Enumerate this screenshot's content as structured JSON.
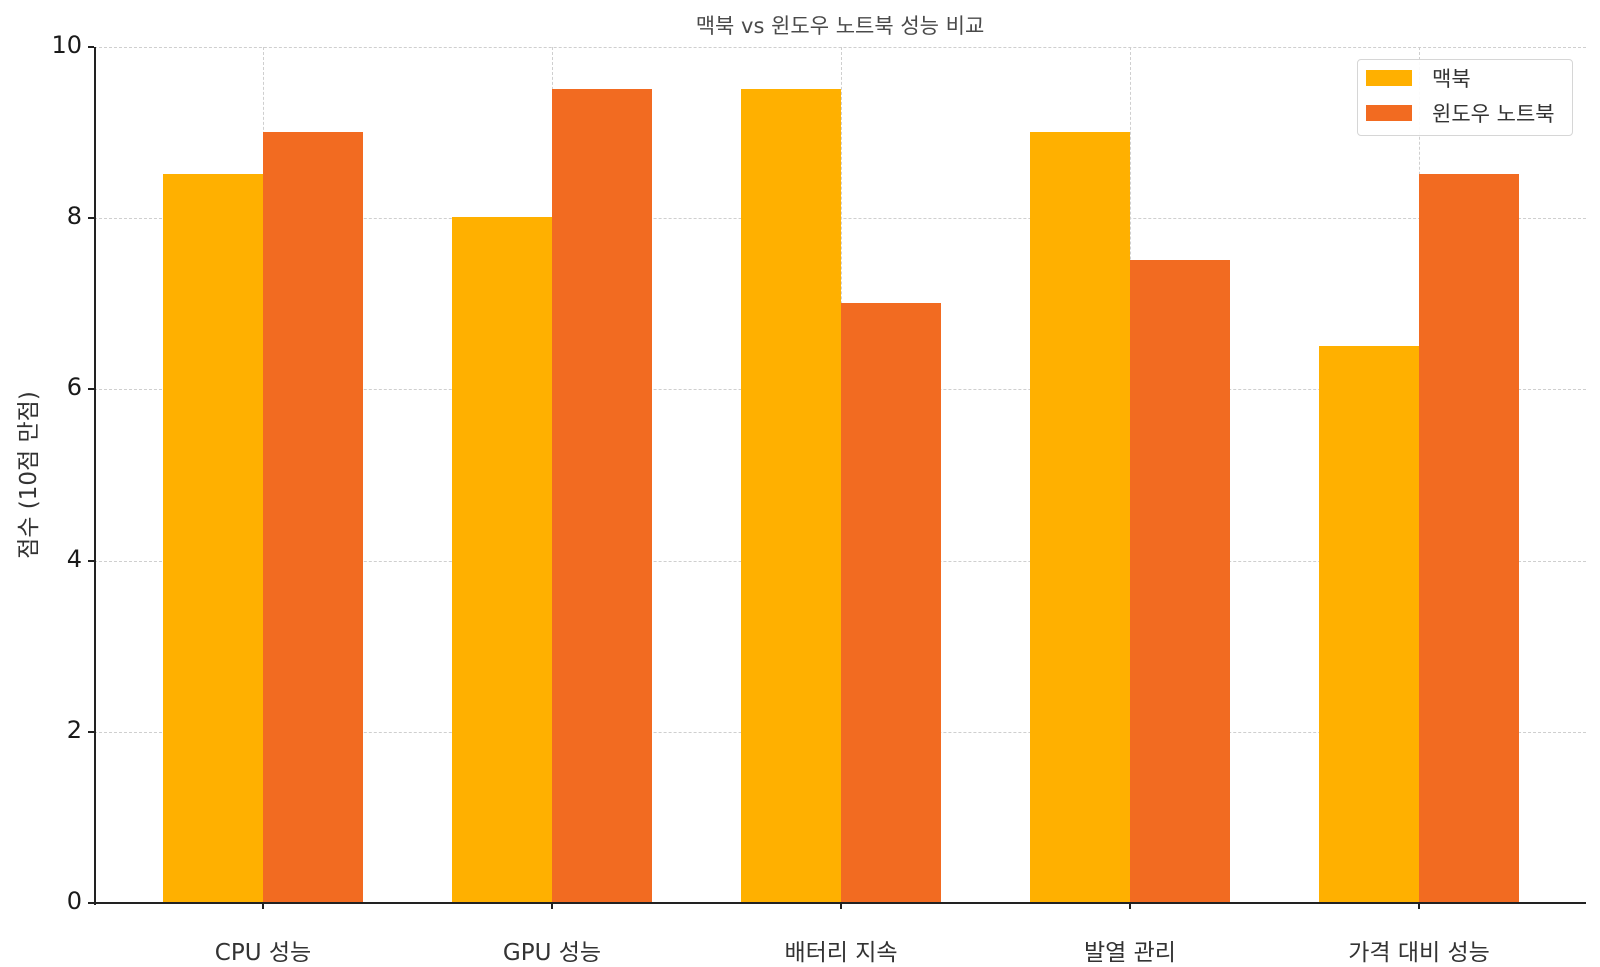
{
  "chart_data": {
    "type": "bar",
    "title": "맥북 vs 윈도우 노트북 성능 비교",
    "xlabel": "",
    "ylabel": "점수 (10점 만점)",
    "categories": [
      "CPU 성능",
      "GPU 성능",
      "배터리 지속",
      "발열 관리",
      "가격 대비 성능"
    ],
    "series": [
      {
        "name": "맥북",
        "color": "#FFB000",
        "values": [
          8.5,
          8.0,
          9.5,
          9.0,
          6.5
        ]
      },
      {
        "name": "윈도우 노트북",
        "color": "#F26B21",
        "values": [
          9.0,
          9.5,
          7.0,
          7.5,
          8.5
        ]
      }
    ],
    "ylim": [
      0,
      10
    ],
    "yticks": [
      0,
      2,
      4,
      6,
      8,
      10
    ],
    "grid": true,
    "legend_position": "upper right"
  },
  "labels": {
    "title": "맥북 vs 윈도우 노트북 성능 비교",
    "ylabel": "점수 (10점 만점)",
    "yticks": [
      "0",
      "2",
      "4",
      "6",
      "8",
      "10"
    ],
    "categories": [
      "CPU 성능",
      "GPU 성능",
      "배터리 지속",
      "발열 관리",
      "가격 대비 성능"
    ],
    "legend": [
      "맥북",
      "윈도우 노트북"
    ]
  }
}
